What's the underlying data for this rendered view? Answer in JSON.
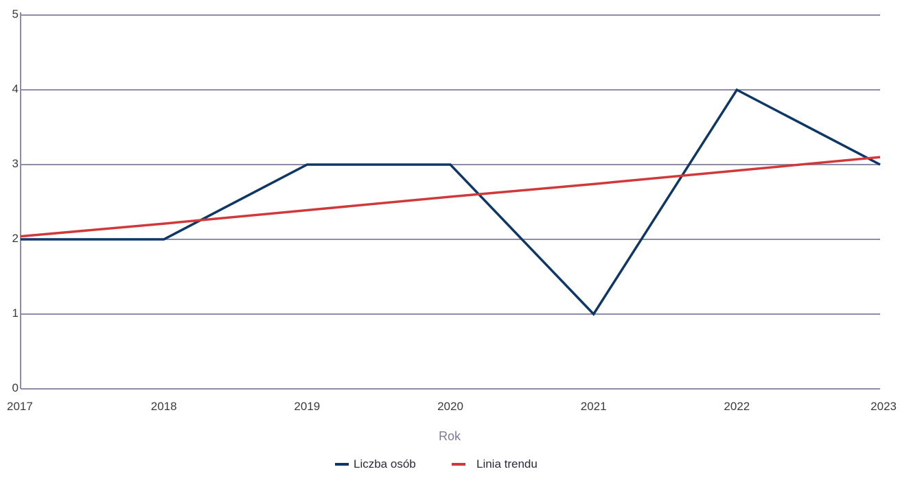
{
  "chart_data": {
    "type": "line",
    "title": "",
    "xlabel": "Rok",
    "ylabel": "",
    "x": [
      "2017",
      "2018",
      "2019",
      "2020",
      "2021",
      "2022",
      "2023"
    ],
    "ylim": [
      0,
      5
    ],
    "yticks": [
      0,
      1,
      2,
      3,
      4,
      5
    ],
    "grid": true,
    "legend_position": "bottom",
    "series": [
      {
        "name": "Liczba osób",
        "color": "#0e3766",
        "values": [
          2,
          2,
          3,
          3,
          1,
          4,
          3
        ]
      },
      {
        "name": "Linia trendu",
        "color": "#d0393a",
        "values": [
          2.04,
          2.21,
          2.39,
          2.57,
          2.74,
          2.92,
          3.1
        ]
      }
    ]
  },
  "colors": {
    "grid": "#8c8ca8",
    "axis": "#8c8ca8"
  }
}
